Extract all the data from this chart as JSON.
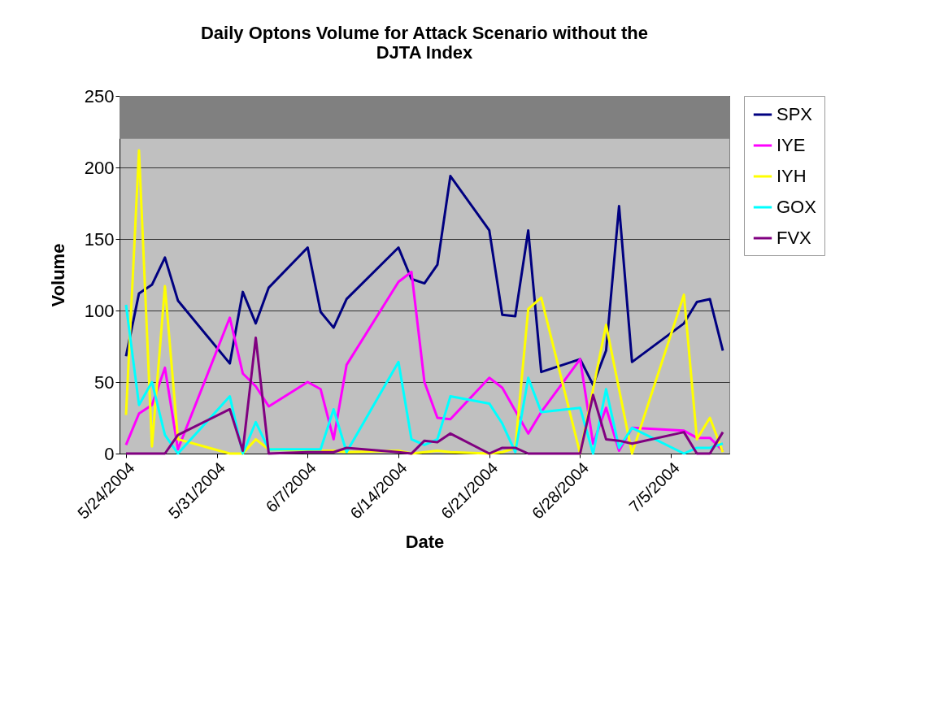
{
  "chart_data": {
    "type": "line",
    "title": "Daily Optons Volume for Attack Scenario without the DJTA Index",
    "xlabel": "Date",
    "ylabel": "Volume",
    "x": [
      "2004-05-24",
      "2004-05-25",
      "2004-05-26",
      "2004-05-27",
      "2004-05-28",
      "2004-06-01",
      "2004-06-02",
      "2004-06-03",
      "2004-06-04",
      "2004-06-07",
      "2004-06-08",
      "2004-06-09",
      "2004-06-10",
      "2004-06-14",
      "2004-06-15",
      "2004-06-16",
      "2004-06-17",
      "2004-06-18",
      "2004-06-21",
      "2004-06-22",
      "2004-06-23",
      "2004-06-24",
      "2004-06-25",
      "2004-06-28",
      "2004-06-29",
      "2004-06-30",
      "2004-07-01",
      "2004-07-02",
      "2004-07-06",
      "2004-07-07",
      "2004-07-08",
      "2004-07-09"
    ],
    "series": [
      {
        "name": "SPX",
        "color": "#000080",
        "values": [
          68,
          112,
          118,
          137,
          107,
          63,
          113,
          91,
          116,
          144,
          99,
          88,
          108,
          144,
          122,
          119,
          132,
          194,
          156,
          97,
          96,
          156,
          57,
          66,
          48,
          72,
          173,
          64,
          91,
          106,
          108,
          72
        ]
      },
      {
        "name": "IYE",
        "color": "#ff00ff",
        "values": [
          6,
          28,
          34,
          60,
          3,
          95,
          56,
          47,
          33,
          50,
          45,
          10,
          62,
          120,
          127,
          50,
          25,
          24,
          53,
          46,
          30,
          14,
          29,
          66,
          7,
          32,
          2,
          18,
          16,
          11,
          11,
          2
        ]
      },
      {
        "name": "IYH",
        "color": "#ffff00",
        "values": [
          27,
          212,
          5,
          117,
          10,
          0,
          0,
          10,
          3,
          2,
          2,
          2,
          1,
          2,
          0,
          1,
          2,
          1,
          0,
          1,
          4,
          101,
          109,
          0,
          45,
          90,
          45,
          0,
          111,
          10,
          25,
          1
        ]
      },
      {
        "name": "GOX",
        "color": "#00ffff",
        "values": [
          104,
          34,
          50,
          13,
          0,
          40,
          0,
          22,
          3,
          3,
          3,
          31,
          1,
          64,
          10,
          6,
          10,
          40,
          35,
          21,
          1,
          53,
          29,
          32,
          0,
          45,
          4,
          18,
          0,
          4,
          4,
          7
        ]
      },
      {
        "name": "FVX",
        "color": "#800080",
        "values": [
          0,
          0,
          0,
          0,
          13,
          31,
          2,
          81,
          0,
          1,
          1,
          1,
          4,
          1,
          0,
          9,
          8,
          14,
          0,
          4,
          4,
          0,
          0,
          0,
          41,
          10,
          9,
          7,
          15,
          0,
          0,
          15
        ]
      }
    ],
    "xlim": [
      "2004-05-23T12:00",
      "2004-07-09T12:00"
    ],
    "xticks": [
      {
        "value": "2004-05-24",
        "label": "5/24/2004"
      },
      {
        "value": "2004-05-31",
        "label": "5/31/2004"
      },
      {
        "value": "2004-06-07",
        "label": "6/7/2004"
      },
      {
        "value": "2004-06-14",
        "label": "6/14/2004"
      },
      {
        "value": "2004-06-21",
        "label": "6/21/2004"
      },
      {
        "value": "2004-06-28",
        "label": "6/28/2004"
      },
      {
        "value": "2004-07-05",
        "label": "7/5/2004"
      }
    ],
    "ylim": [
      0,
      250
    ],
    "yticks": [
      0,
      50,
      100,
      150,
      200,
      250
    ],
    "bands": [
      {
        "axis": "y",
        "from": 220,
        "to": 250,
        "color": "#808080"
      }
    ],
    "grid": "y",
    "legend": "right",
    "marker": "none",
    "line_style": "solid"
  }
}
